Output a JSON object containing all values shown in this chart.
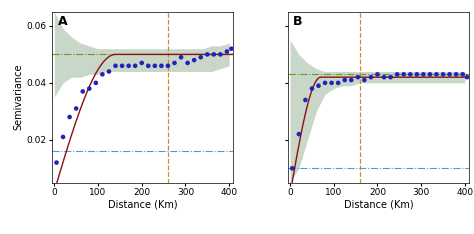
{
  "panel_A": {
    "label": "A",
    "dots_x": [
      5,
      20,
      35,
      50,
      65,
      80,
      95,
      110,
      125,
      140,
      155,
      170,
      185,
      200,
      215,
      230,
      245,
      260,
      275,
      290,
      305,
      320,
      335,
      350,
      365,
      380,
      395,
      405
    ],
    "dots_y": [
      0.012,
      0.021,
      0.028,
      0.031,
      0.037,
      0.038,
      0.04,
      0.043,
      0.044,
      0.046,
      0.046,
      0.046,
      0.046,
      0.047,
      0.046,
      0.046,
      0.046,
      0.046,
      0.047,
      0.049,
      0.047,
      0.048,
      0.049,
      0.05,
      0.05,
      0.05,
      0.051,
      0.052
    ],
    "nugget": 0.002,
    "sill": 0.05,
    "range_km": 140,
    "vline_x": 260,
    "ylim": [
      0.005,
      0.065
    ],
    "yticks": [
      0.02,
      0.04,
      0.06
    ],
    "xlim": [
      -5,
      410
    ],
    "xticks": [
      0,
      100,
      200,
      300,
      400
    ],
    "band_x": [
      0,
      20,
      40,
      60,
      80,
      100,
      120,
      140,
      160,
      180,
      200,
      220,
      240,
      260,
      280,
      300,
      320,
      340,
      360,
      380,
      400
    ],
    "band_upper": [
      0.065,
      0.059,
      0.056,
      0.054,
      0.053,
      0.052,
      0.052,
      0.052,
      0.052,
      0.052,
      0.052,
      0.052,
      0.052,
      0.052,
      0.052,
      0.052,
      0.052,
      0.052,
      0.053,
      0.053,
      0.054
    ],
    "band_lower": [
      0.035,
      0.04,
      0.042,
      0.042,
      0.043,
      0.043,
      0.044,
      0.044,
      0.044,
      0.044,
      0.044,
      0.044,
      0.044,
      0.044,
      0.044,
      0.044,
      0.044,
      0.044,
      0.044,
      0.045,
      0.046
    ],
    "sill_line": 0.05,
    "nugget_line": 0.016
  },
  "panel_B": {
    "label": "B",
    "dots_x": [
      5,
      20,
      35,
      50,
      65,
      80,
      95,
      110,
      125,
      140,
      155,
      170,
      185,
      200,
      215,
      230,
      245,
      260,
      275,
      290,
      305,
      320,
      335,
      350,
      365,
      380,
      395,
      405
    ],
    "dots_y": [
      0.01,
      0.022,
      0.034,
      0.038,
      0.039,
      0.04,
      0.04,
      0.04,
      0.041,
      0.041,
      0.042,
      0.041,
      0.042,
      0.043,
      0.042,
      0.042,
      0.043,
      0.043,
      0.043,
      0.043,
      0.043,
      0.043,
      0.043,
      0.043,
      0.043,
      0.043,
      0.043,
      0.042
    ],
    "nugget": 0.001,
    "sill": 0.042,
    "range_km": 70,
    "vline_x": 160,
    "ylim": [
      0.005,
      0.065
    ],
    "yticks": [
      0.02,
      0.04,
      0.06
    ],
    "xlim": [
      -5,
      410
    ],
    "xticks": [
      0,
      100,
      200,
      300,
      400
    ],
    "band_x": [
      0,
      20,
      40,
      60,
      80,
      100,
      120,
      140,
      160,
      180,
      200,
      220,
      240,
      260,
      280,
      300,
      320,
      340,
      360,
      380,
      400
    ],
    "band_upper": [
      0.055,
      0.05,
      0.047,
      0.045,
      0.044,
      0.044,
      0.044,
      0.044,
      0.044,
      0.044,
      0.044,
      0.044,
      0.044,
      0.044,
      0.044,
      0.044,
      0.044,
      0.044,
      0.044,
      0.044,
      0.044
    ],
    "band_lower": [
      0.005,
      0.01,
      0.02,
      0.03,
      0.036,
      0.038,
      0.039,
      0.039,
      0.04,
      0.04,
      0.04,
      0.04,
      0.04,
      0.04,
      0.04,
      0.04,
      0.04,
      0.04,
      0.04,
      0.04,
      0.04
    ],
    "sill_line": 0.043,
    "nugget_line": 0.01
  },
  "dot_color": "#2222bb",
  "fit_color": "#8b1010",
  "band_color": "#c0d0c0",
  "sill_color": "#669922",
  "nugget_color": "#5599cc",
  "vline_color": "#cc8833",
  "ylabel": "Semivariance",
  "xlabel": "Distance (Km)",
  "title_fontsize": 9,
  "label_fontsize": 7,
  "tick_fontsize": 6.5
}
